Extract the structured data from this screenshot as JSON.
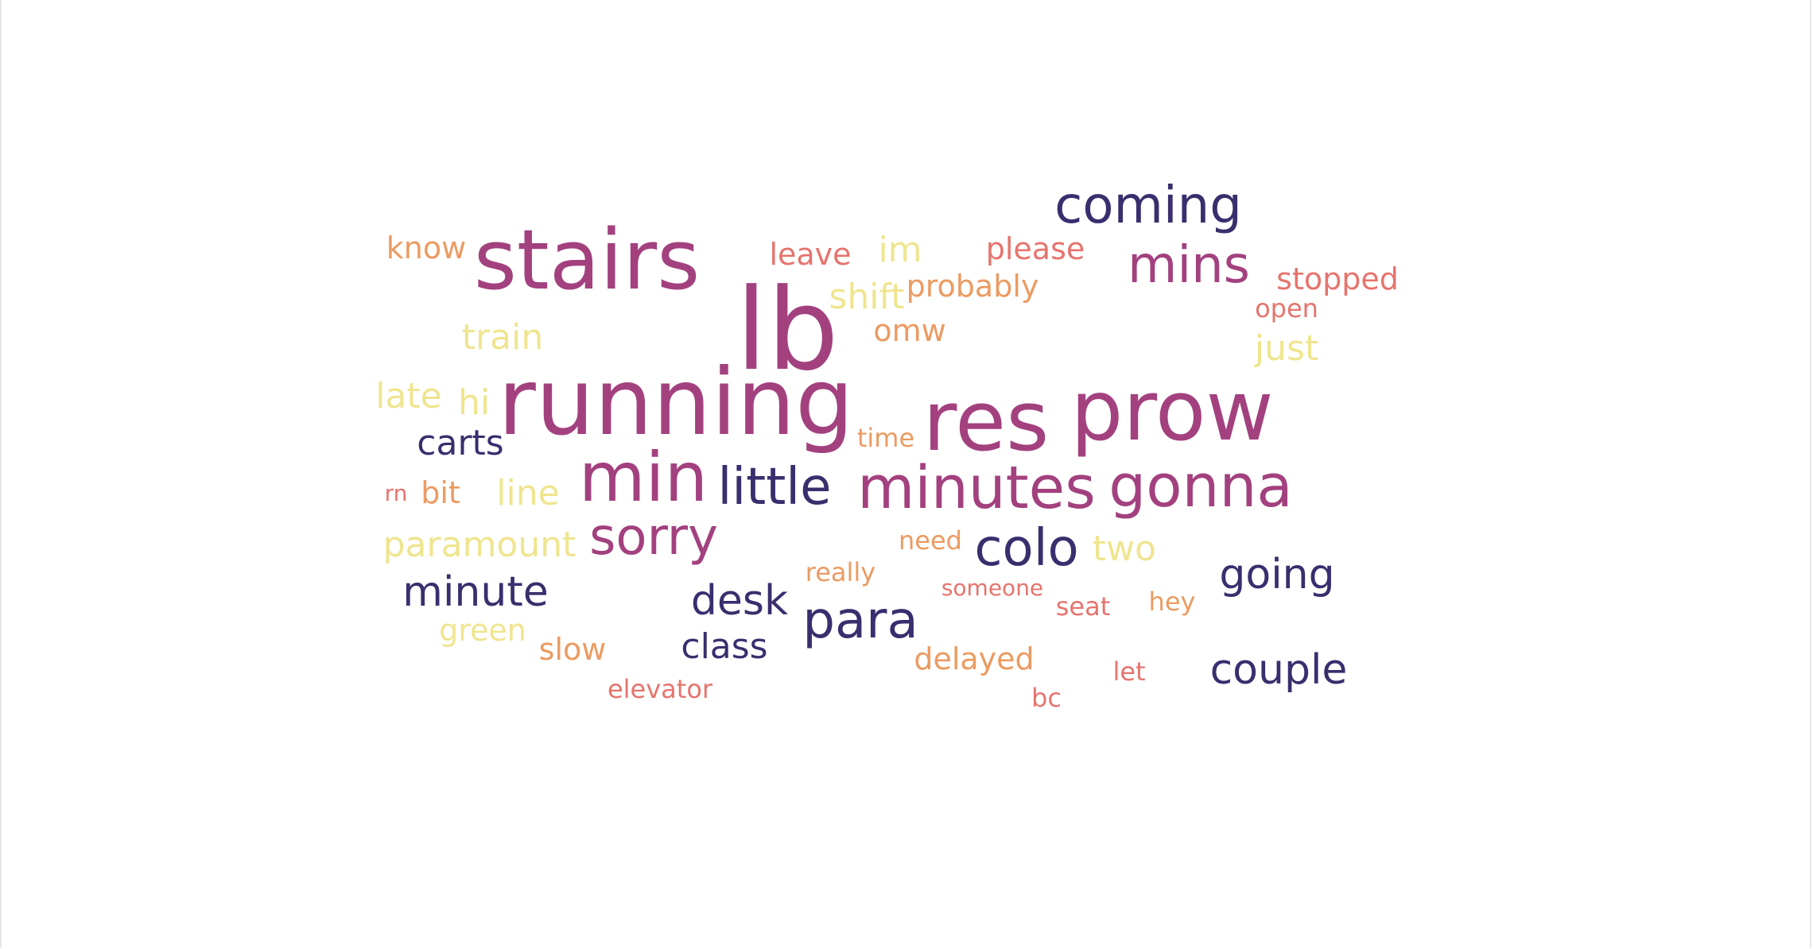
{
  "words": {
    "lb": "lb",
    "running": "running",
    "stairs": "stairs",
    "prow": "prow",
    "res": "res",
    "min": "min",
    "minutes": "minutes",
    "gonna": "gonna",
    "mins": "mins",
    "sorry": "sorry",
    "coming": "coming",
    "colo": "colo",
    "little": "little",
    "para": "para",
    "minute": "minute",
    "going": "going",
    "couple": "couple",
    "desk": "desk",
    "class": "class",
    "carts": "carts",
    "know": "know",
    "leave": "leave",
    "im": "im",
    "please": "please",
    "shift": "shift",
    "probably": "probably",
    "stopped": "stopped",
    "open": "open",
    "train": "train",
    "omw": "omw",
    "just": "just",
    "late": "late",
    "hi": "hi",
    "time": "time",
    "rn": "rn",
    "bit": "bit",
    "line": "line",
    "paramount": "paramount",
    "need": "need",
    "two": "two",
    "really": "really",
    "someone": "someone",
    "seat": "seat",
    "hey": "hey",
    "green": "green",
    "slow": "slow",
    "delayed": "delayed",
    "let": "let",
    "elevator": "elevator",
    "bc": "bc"
  },
  "colors": {
    "navy": "#3a2e6e",
    "magenta": "#a3417f",
    "coral": "#e6746e",
    "orange": "#eb9b62",
    "yellow": "#efe58f"
  }
}
